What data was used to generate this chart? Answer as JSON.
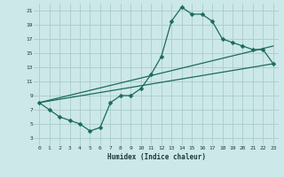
{
  "xlabel": "Humidex (Indice chaleur)",
  "bg_color": "#cce8e8",
  "grid_color": "#aacccc",
  "line_color": "#1a6b5a",
  "markersize": 2.5,
  "linewidth": 0.9,
  "xlim": [
    -0.5,
    23.5
  ],
  "ylim": [
    2,
    22
  ],
  "xticks": [
    0,
    1,
    2,
    3,
    4,
    5,
    6,
    7,
    8,
    9,
    10,
    11,
    12,
    13,
    14,
    15,
    16,
    17,
    18,
    19,
    20,
    21,
    22,
    23
  ],
  "yticks": [
    3,
    5,
    7,
    9,
    11,
    13,
    15,
    17,
    19,
    21
  ],
  "curve1_x": [
    0,
    1,
    2,
    3,
    4,
    5,
    6,
    7,
    8,
    9,
    10,
    11,
    12,
    13,
    14,
    15,
    16,
    17,
    18,
    19,
    20,
    21,
    22,
    23
  ],
  "curve1_y": [
    8,
    7,
    6,
    5.5,
    5,
    4,
    4.5,
    8,
    9,
    9,
    10,
    12,
    14.5,
    19.5,
    21.5,
    20.5,
    20.5,
    19.5,
    17,
    16.5,
    16,
    15.5,
    15.5,
    13.5
  ],
  "curve2_x": [
    0,
    23
  ],
  "curve2_y": [
    8,
    13.5
  ],
  "curve3_x": [
    0,
    23
  ],
  "curve3_y": [
    8,
    16
  ]
}
